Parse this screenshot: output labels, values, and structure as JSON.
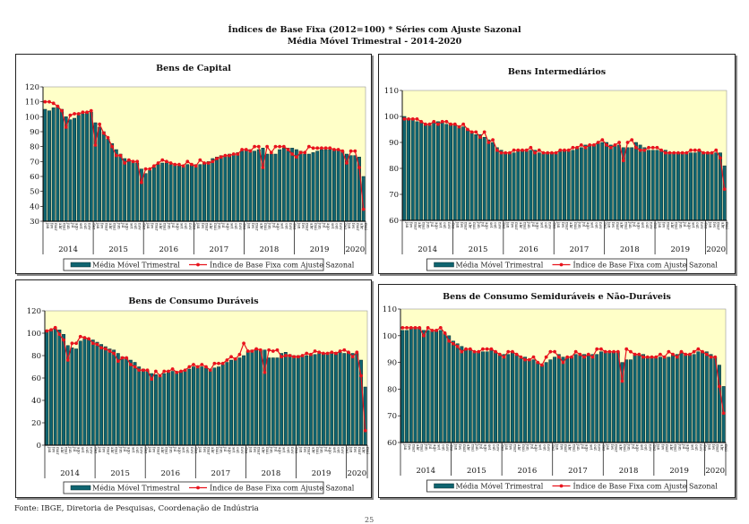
{
  "page": {
    "title_line1": "Índices de Base Fixa (2012=100) * Séries com Ajuste Sazonal",
    "title_line2": "Média Móvel Trimestral - 2014-2020",
    "source": "Fonte: IBGE, Diretoria de Pesquisas, Coordenação de Indústria",
    "page_number": "25"
  },
  "colors": {
    "plot_bg": "#ffffc8",
    "bar": "#0f6470",
    "bar_edge": "#0a2a2e",
    "line": "#e8141e"
  },
  "chart_data": [
    {
      "type": "bar",
      "title": "Bens de Capital",
      "ylim": [
        30,
        120
      ],
      "yticks": [
        30,
        40,
        50,
        60,
        70,
        80,
        90,
        100,
        110,
        120
      ],
      "x_start": "2014-01",
      "month_labels": [
        "jan",
        "fev",
        "mar",
        "abr",
        "mai",
        "jun",
        "jul",
        "ago",
        "set",
        "out",
        "nov",
        "dez"
      ],
      "year_labels": [
        "2014",
        "2015",
        "2016",
        "2017",
        "2018",
        "2019",
        "2020"
      ],
      "legend": [
        "Média Móvel Trimestral",
        "Índice de Base Fixa com Ajuste Sazonal"
      ],
      "legend_position": "bottom",
      "series": [
        {
          "name": "Média Móvel Trimestral",
          "type": "bar",
          "values": [
            105,
            104,
            106,
            107,
            105,
            100,
            98,
            99,
            101,
            102,
            103,
            103,
            96,
            93,
            90,
            85,
            82,
            78,
            75,
            72,
            71,
            70,
            69,
            65,
            62,
            64,
            66,
            68,
            69,
            69,
            68,
            68,
            67,
            67,
            68,
            68,
            68,
            68,
            69,
            70,
            72,
            73,
            74,
            74,
            75,
            75,
            76,
            77,
            78,
            78,
            77,
            78,
            79,
            75,
            75,
            75,
            78,
            79,
            79,
            79,
            78,
            77,
            75,
            75,
            76,
            77,
            78,
            78,
            78,
            78,
            78,
            77,
            75,
            74,
            74,
            73,
            60
          ]
        },
        {
          "name": "Índice de Base Fixa com Ajuste Sazonal",
          "type": "line",
          "values": [
            110,
            110,
            109,
            107,
            104,
            93,
            101,
            102,
            102,
            103,
            103,
            104,
            81,
            95,
            89,
            86,
            80,
            74,
            74,
            69,
            71,
            70,
            70,
            56,
            65,
            65,
            67,
            69,
            71,
            70,
            69,
            68,
            68,
            67,
            70,
            68,
            67,
            71,
            69,
            69,
            70,
            72,
            73,
            74,
            74,
            75,
            75,
            78,
            78,
            77,
            80,
            80,
            66,
            80,
            76,
            80,
            80,
            80,
            78,
            75,
            73,
            76,
            76,
            80,
            79,
            79,
            79,
            79,
            79,
            78,
            78,
            77,
            69,
            77,
            77,
            66,
            38
          ]
        }
      ]
    },
    {
      "type": "bar",
      "title": "Bens Intermediários",
      "ylim": [
        60,
        110
      ],
      "yticks": [
        60,
        70,
        80,
        90,
        100,
        110
      ],
      "x_start": "2014-01",
      "month_labels": [
        "jan",
        "fev",
        "mar",
        "abr",
        "mai",
        "jun",
        "jul",
        "ago",
        "set",
        "out",
        "nov",
        "dez"
      ],
      "year_labels": [
        "2014",
        "2015",
        "2016",
        "2017",
        "2018",
        "2019",
        "2020"
      ],
      "legend": [
        "Média Móvel Trimestral",
        "Índice de Base Fixa com Ajuste Sazonal"
      ],
      "legend_position": "bottom",
      "series": [
        {
          "name": "Média Móvel Trimestral",
          "type": "bar",
          "values": [
            100,
            99,
            99,
            98,
            98,
            97,
            97,
            98,
            98,
            98,
            97,
            97,
            97,
            96,
            96,
            95,
            94,
            93,
            93,
            92,
            91,
            90,
            88,
            87,
            86,
            86,
            86,
            87,
            87,
            87,
            87,
            87,
            86,
            86,
            86,
            86,
            86,
            87,
            87,
            87,
            87,
            88,
            88,
            89,
            89,
            89,
            90,
            90,
            90,
            89,
            89,
            89,
            88,
            88,
            88,
            90,
            89,
            88,
            87,
            87,
            87,
            87,
            87,
            86,
            86,
            86,
            86,
            86,
            86,
            86,
            87,
            86,
            86,
            86,
            86,
            86,
            81
          ]
        },
        {
          "name": "Índice de Base Fixa com Ajuste Sazonal",
          "type": "line",
          "values": [
            99,
            99,
            99,
            99,
            98,
            97,
            97,
            98,
            97,
            98,
            98,
            97,
            97,
            96,
            97,
            95,
            94,
            94,
            92,
            94,
            90,
            91,
            87,
            86,
            86,
            86,
            87,
            87,
            87,
            87,
            88,
            86,
            87,
            86,
            86,
            86,
            86,
            87,
            87,
            87,
            88,
            88,
            89,
            88,
            89,
            89,
            90,
            91,
            89,
            88,
            89,
            90,
            83,
            90,
            91,
            88,
            87,
            87,
            88,
            88,
            88,
            87,
            86,
            86,
            86,
            86,
            86,
            86,
            87,
            87,
            87,
            86,
            86,
            86,
            87,
            84,
            72
          ]
        }
      ]
    },
    {
      "type": "bar",
      "title": "Bens de Consumo Duráveis",
      "ylim": [
        0,
        120
      ],
      "yticks": [
        0,
        20,
        40,
        60,
        80,
        100,
        120
      ],
      "x_start": "2014-01",
      "month_labels": [
        "jan",
        "fev",
        "mar",
        "abr",
        "mai",
        "jun",
        "jul",
        "ago",
        "set",
        "out",
        "nov",
        "dez"
      ],
      "year_labels": [
        "2014",
        "2015",
        "2016",
        "2017",
        "2018",
        "2019",
        "2020"
      ],
      "legend": [
        "Média Móvel Trimestral",
        "Índice de Base Fixa com Ajuste Sazonal"
      ],
      "legend_position": "bottom",
      "series": [
        {
          "name": "Média Móvel Trimestral",
          "type": "bar",
          "values": [
            102,
            103,
            104,
            103,
            99,
            89,
            87,
            86,
            93,
            96,
            95,
            94,
            92,
            90,
            88,
            86,
            85,
            82,
            79,
            78,
            76,
            74,
            70,
            68,
            67,
            64,
            63,
            62,
            64,
            65,
            66,
            65,
            66,
            67,
            68,
            70,
            70,
            70,
            69,
            68,
            69,
            70,
            72,
            74,
            76,
            77,
            78,
            80,
            84,
            85,
            86,
            85,
            85,
            78,
            78,
            78,
            82,
            83,
            81,
            80,
            80,
            80,
            80,
            81,
            81,
            82,
            82,
            82,
            82,
            83,
            83,
            82,
            83,
            82,
            82,
            76,
            52
          ]
        },
        {
          "name": "Índice de Base Fixa com Ajuste Sazonal",
          "type": "line",
          "values": [
            102,
            103,
            105,
            99,
            94,
            76,
            91,
            91,
            97,
            96,
            95,
            91,
            90,
            87,
            86,
            84,
            82,
            75,
            78,
            78,
            72,
            70,
            67,
            67,
            67,
            59,
            66,
            62,
            66,
            66,
            68,
            65,
            66,
            67,
            70,
            72,
            70,
            72,
            70,
            67,
            73,
            73,
            73,
            76,
            79,
            77,
            81,
            91,
            84,
            84,
            86,
            85,
            65,
            85,
            84,
            85,
            79,
            80,
            80,
            79,
            79,
            80,
            82,
            81,
            84,
            83,
            82,
            82,
            83,
            82,
            84,
            85,
            83,
            79,
            83,
            62,
            13
          ]
        }
      ]
    },
    {
      "type": "bar",
      "title": "Bens de Consumo Semiduráveis e Não-Duráveis",
      "ylim": [
        60,
        110
      ],
      "yticks": [
        60,
        70,
        80,
        90,
        100,
        110
      ],
      "x_start": "2014-01",
      "month_labels": [
        "jan",
        "fev",
        "mar",
        "abr",
        "mai",
        "jun",
        "jul",
        "ago",
        "set",
        "out",
        "nov",
        "dez"
      ],
      "year_labels": [
        "2014",
        "2015",
        "2016",
        "2017",
        "2018",
        "2019",
        "2020"
      ],
      "legend": [
        "Média Móvel Trimestral",
        "Índice de Base Fixa com Ajuste Sazonal"
      ],
      "legend_position": "bottom",
      "series": [
        {
          "name": "Média Móvel Trimestral",
          "type": "bar",
          "values": [
            102,
            102,
            103,
            103,
            103,
            102,
            102,
            102,
            102,
            102,
            101,
            100,
            98,
            97,
            96,
            95,
            95,
            94,
            94,
            94,
            94,
            95,
            94,
            93,
            93,
            93,
            94,
            93,
            92,
            92,
            91,
            91,
            90,
            89,
            90,
            91,
            92,
            93,
            92,
            92,
            92,
            93,
            93,
            93,
            93,
            93,
            93,
            94,
            94,
            94,
            94,
            94,
            90,
            91,
            91,
            93,
            93,
            93,
            92,
            92,
            92,
            92,
            92,
            92,
            93,
            93,
            94,
            93,
            93,
            93,
            94,
            94,
            94,
            93,
            92,
            89,
            81
          ]
        },
        {
          "name": "Índice de Base Fixa com Ajuste Sazonal",
          "type": "line",
          "values": [
            103,
            103,
            103,
            103,
            103,
            100,
            103,
            102,
            102,
            103,
            101,
            98,
            97,
            96,
            94,
            95,
            95,
            94,
            94,
            95,
            95,
            95,
            94,
            93,
            92,
            94,
            94,
            93,
            92,
            91,
            91,
            92,
            90,
            89,
            92,
            94,
            94,
            92,
            90,
            92,
            92,
            94,
            93,
            92,
            93,
            92,
            95,
            95,
            94,
            94,
            94,
            94,
            83,
            95,
            94,
            93,
            93,
            92,
            92,
            92,
            92,
            93,
            92,
            94,
            93,
            92,
            94,
            93,
            93,
            94,
            95,
            94,
            93,
            92,
            92,
            81,
            71
          ]
        }
      ]
    }
  ]
}
